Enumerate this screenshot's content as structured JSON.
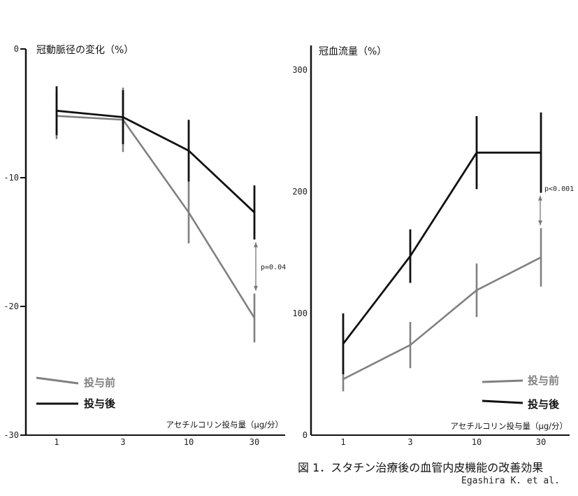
{
  "chart_data": [
    {
      "type": "line",
      "ylabel": "冠動脈径の変化（%）",
      "xlabel": "アセチルコリン投与量（μg/分）",
      "categories": [
        "1",
        "3",
        "10",
        "30"
      ],
      "yticks": [
        "0",
        "-10",
        "-20",
        "-30"
      ],
      "ylim": [
        -30,
        0
      ],
      "series": [
        {
          "name": "投与前",
          "color": "#808080",
          "values": [
            -5.2,
            -5.5,
            -12.7,
            -20.9
          ],
          "err": [
            1.8,
            2.5,
            2.4,
            1.9
          ]
        },
        {
          "name": "投与後",
          "color": "#111111",
          "values": [
            -4.8,
            -5.3,
            -7.9,
            -12.7
          ],
          "err": [
            1.9,
            2.1,
            2.4,
            2.1
          ]
        }
      ],
      "annotation": "p=0.04",
      "legend_position": "bottom-left"
    },
    {
      "type": "line",
      "ylabel": "冠血流量（%）",
      "xlabel": "アセチルコリン投与量（μg/分）",
      "categories": [
        "1",
        "3",
        "10",
        "30"
      ],
      "yticks": [
        "0",
        "100",
        "200",
        "300"
      ],
      "ylim": [
        0,
        320
      ],
      "series": [
        {
          "name": "投与前",
          "color": "#808080",
          "values": [
            46,
            74,
            119,
            146
          ],
          "err": [
            10,
            19,
            22,
            24
          ]
        },
        {
          "name": "投与後",
          "color": "#111111",
          "values": [
            75,
            147,
            232,
            232
          ],
          "err": [
            25,
            22,
            30,
            33
          ]
        }
      ],
      "annotation": "p<0.001",
      "legend_position": "bottom-right"
    }
  ],
  "caption": "図 1．スタチン治療後の血管内皮機能の改善効果",
  "author": "Egashira K. et al."
}
